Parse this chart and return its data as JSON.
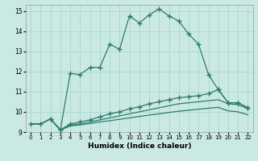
{
  "xlabel": "Humidex (Indice chaleur)",
  "xlim": [
    -0.5,
    22.5
  ],
  "ylim": [
    9,
    15.3
  ],
  "xticks": [
    0,
    1,
    2,
    3,
    4,
    5,
    6,
    7,
    8,
    9,
    10,
    11,
    12,
    13,
    14,
    15,
    16,
    17,
    18,
    19,
    20,
    21,
    22
  ],
  "yticks": [
    9,
    10,
    11,
    12,
    13,
    14,
    15
  ],
  "bg_color": "#cbe9e3",
  "line_color": "#2d7b6b",
  "grid_color": "#a8d8ce",
  "line1_x": [
    0,
    1,
    2,
    3,
    4,
    5,
    6,
    7,
    8,
    9,
    10,
    11,
    12,
    13,
    14,
    15,
    16,
    17,
    18,
    19,
    20,
    21,
    22
  ],
  "line1_y": [
    9.4,
    9.4,
    9.65,
    9.1,
    11.9,
    11.85,
    12.2,
    12.2,
    13.35,
    13.1,
    14.75,
    14.4,
    14.8,
    15.1,
    14.75,
    14.5,
    13.85,
    13.35,
    11.85,
    11.1,
    10.45,
    10.45,
    10.2
  ],
  "line2_x": [
    2,
    3,
    4,
    5,
    6,
    7,
    8,
    9,
    10,
    11,
    12,
    13,
    14,
    15,
    16,
    17,
    18,
    19,
    20,
    21,
    22
  ],
  "line2_y": [
    9.65,
    9.1,
    9.4,
    9.5,
    9.6,
    9.75,
    9.9,
    10.0,
    10.15,
    10.25,
    10.4,
    10.5,
    10.6,
    10.7,
    10.75,
    10.8,
    10.9,
    11.1,
    10.45,
    10.45,
    10.2
  ],
  "line3_x": [
    0,
    1,
    2,
    3,
    4,
    5,
    6,
    7,
    8,
    9,
    10,
    11,
    12,
    13,
    14,
    15,
    16,
    17,
    18,
    19,
    20,
    21,
    22
  ],
  "line3_y": [
    9.4,
    9.4,
    9.65,
    9.1,
    9.35,
    9.4,
    9.5,
    9.6,
    9.7,
    9.8,
    9.9,
    10.0,
    10.1,
    10.2,
    10.3,
    10.4,
    10.45,
    10.5,
    10.55,
    10.6,
    10.4,
    10.35,
    10.15
  ],
  "line4_x": [
    0,
    1,
    2,
    3,
    4,
    5,
    6,
    7,
    8,
    9,
    10,
    11,
    12,
    13,
    14,
    15,
    16,
    17,
    18,
    19,
    20,
    21,
    22
  ],
  "line4_y": [
    9.4,
    9.4,
    9.65,
    9.1,
    9.3,
    9.35,
    9.42,
    9.5,
    9.56,
    9.63,
    9.7,
    9.77,
    9.84,
    9.9,
    9.97,
    10.03,
    10.08,
    10.13,
    10.18,
    10.22,
    10.05,
    10.0,
    9.85
  ]
}
